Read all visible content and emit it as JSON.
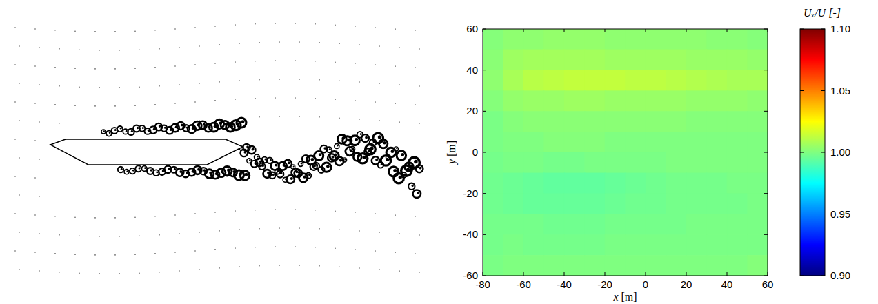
{
  "chart_data": {
    "type": "heatmap",
    "xlabel": "x [m]",
    "ylabel": "y [m]",
    "xlim": [
      -80,
      60
    ],
    "ylim": [
      -60,
      60
    ],
    "xticks": [
      -80,
      -60,
      -40,
      -20,
      0,
      20,
      40,
      60
    ],
    "yticks": [
      -60,
      -40,
      -20,
      0,
      20,
      40,
      60
    ],
    "x": [
      -75,
      -65,
      -55,
      -45,
      -35,
      -25,
      -15,
      -5,
      5,
      15,
      25,
      35,
      45,
      55
    ],
    "y": [
      55,
      45,
      35,
      25,
      15,
      5,
      -5,
      -15,
      -25,
      -35,
      -45,
      -55
    ],
    "z": [
      [
        1.001,
        1.003,
        1.003,
        1.004,
        1.004,
        1.004,
        1.003,
        1.003,
        1.003,
        1.003,
        1.003,
        1.002,
        1.002,
        1.001
      ],
      [
        1.002,
        1.006,
        1.007,
        1.007,
        1.007,
        1.007,
        1.006,
        1.006,
        1.006,
        1.006,
        1.005,
        1.005,
        1.005,
        1.004
      ],
      [
        1.003,
        1.008,
        1.011,
        1.012,
        1.013,
        1.013,
        1.013,
        1.012,
        1.012,
        1.011,
        1.01,
        1.009,
        1.008,
        1.008
      ],
      [
        1.001,
        1.004,
        1.005,
        1.005,
        1.006,
        1.006,
        1.005,
        1.005,
        1.005,
        1.005,
        1.004,
        1.004,
        1.004,
        1.003
      ],
      [
        0.999,
        1.001,
        1.002,
        1.002,
        1.002,
        1.002,
        1.002,
        1.002,
        1.002,
        1.002,
        1.001,
        1.001,
        1.001,
        1.001
      ],
      [
        0.999,
        1.0,
        1.0,
        1.001,
        1.001,
        1.001,
        1.0,
        1.0,
        1.0,
        1.0,
        1.0,
        1.0,
        1.0,
        1.0
      ],
      [
        0.998,
        0.999,
        0.999,
        0.998,
        0.998,
        0.999,
        0.999,
        0.999,
        0.999,
        1.0,
        1.0,
        1.0,
        1.0,
        1.0
      ],
      [
        0.997,
        0.996,
        0.995,
        0.994,
        0.994,
        0.994,
        0.995,
        0.996,
        0.997,
        0.998,
        0.998,
        0.998,
        0.999,
        0.999
      ],
      [
        0.997,
        0.996,
        0.995,
        0.995,
        0.995,
        0.995,
        0.996,
        0.997,
        0.997,
        0.998,
        0.998,
        0.998,
        0.998,
        0.999
      ],
      [
        0.998,
        0.998,
        0.998,
        0.997,
        0.997,
        0.997,
        0.998,
        0.998,
        0.998,
        0.998,
        0.999,
        0.999,
        0.999,
        0.999
      ],
      [
        0.998,
        0.999,
        0.998,
        0.998,
        0.998,
        0.998,
        0.999,
        0.999,
        0.999,
        0.999,
        0.999,
        0.999,
        0.999,
        0.999
      ],
      [
        0.999,
        1.0,
        1.0,
        1.0,
        1.0,
        1.0,
        1.0,
        1.0,
        1.0,
        1.0,
        1.0,
        1.0,
        1.0,
        1.001
      ]
    ],
    "colorbar": {
      "label": "Uₓ/U [-]",
      "range": [
        0.9,
        1.1
      ],
      "ticks": [
        {
          "value": 0.9,
          "label": "0.90"
        },
        {
          "value": 0.95,
          "label": "0.95"
        },
        {
          "value": 1,
          "label": "1.00"
        },
        {
          "value": 1.05,
          "label": "1.05"
        },
        {
          "value": 1.1,
          "label": "1.10"
        }
      ]
    }
  }
}
